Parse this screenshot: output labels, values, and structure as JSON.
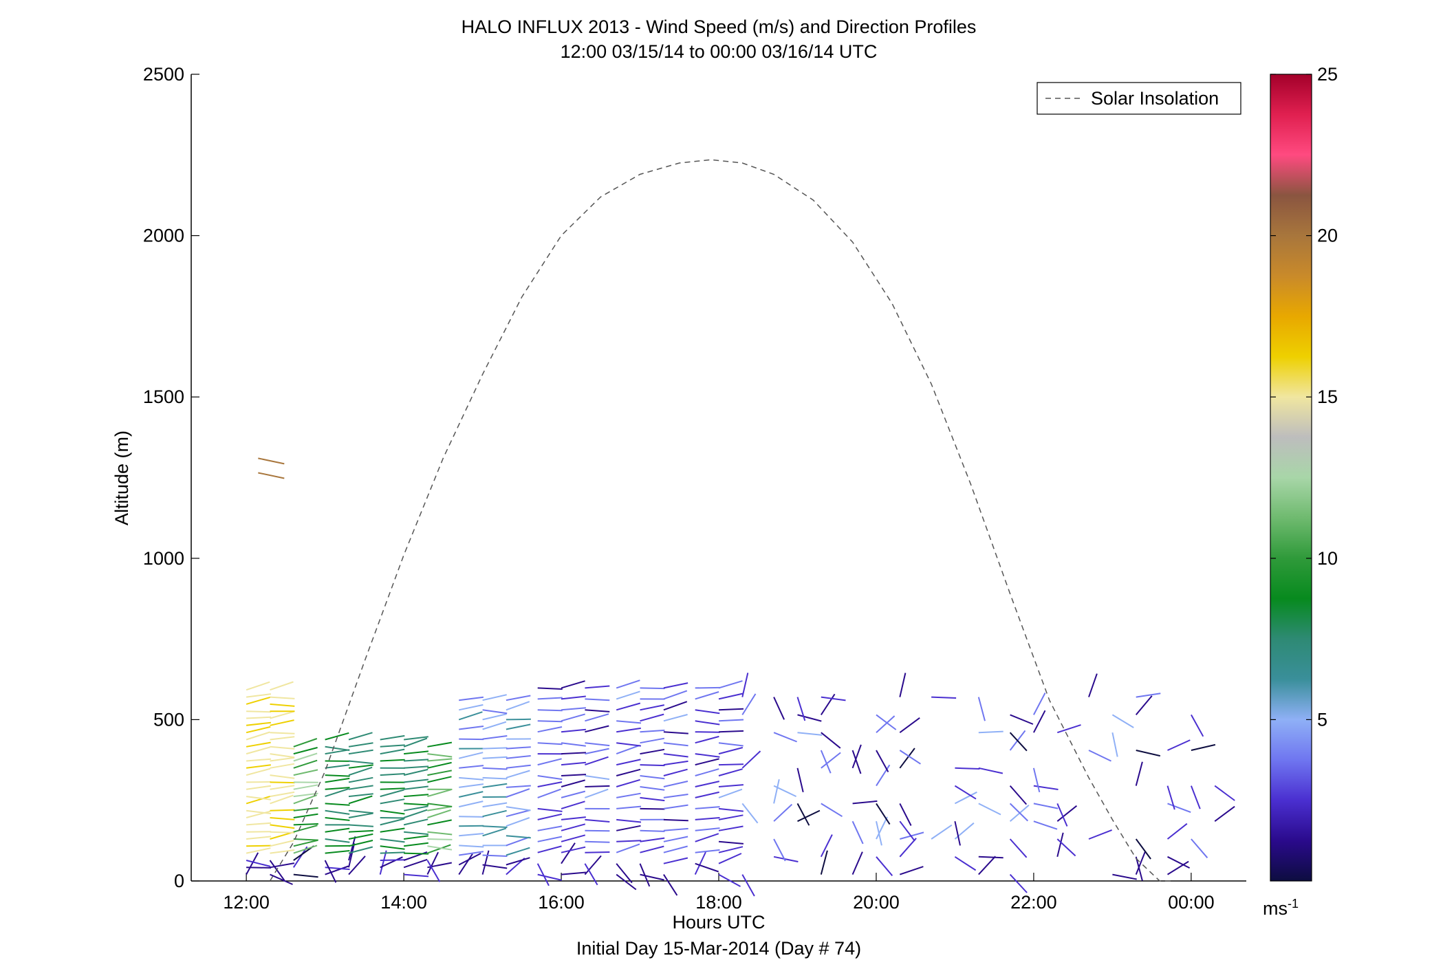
{
  "chart_data": {
    "type": "scatter",
    "title": "HALO INFLUX 2013 - Wind Speed (m/s) and Direction Profiles",
    "subtitle": "12:00 03/15/14 to 00:00 03/16/14  UTC",
    "xlabel": "Hours UTC",
    "xlabel2": "Initial Day 15-Mar-2014 (Day # 74)",
    "ylabel": "Altitude (m)",
    "xlim": [
      11.3,
      24.7
    ],
    "ylim": [
      0,
      2500
    ],
    "x_ticks": [
      12,
      14,
      16,
      18,
      20,
      22,
      24
    ],
    "x_tick_labels": [
      "12:00",
      "14:00",
      "16:00",
      "18:00",
      "20:00",
      "22:00",
      "00:00"
    ],
    "y_ticks": [
      0,
      500,
      1000,
      1500,
      2000,
      2500
    ],
    "y_tick_labels": [
      "0",
      "500",
      "1000",
      "1500",
      "2000",
      "2500"
    ],
    "legend": {
      "entry": "Solar Insolation",
      "placement": "top-right",
      "style": "dashed",
      "color": "#555555"
    },
    "solar_insolation": {
      "x": [
        12.3,
        12.6,
        13.0,
        13.5,
        14.0,
        14.5,
        15.0,
        15.5,
        16.0,
        16.5,
        17.0,
        17.5,
        17.9,
        18.3,
        18.7,
        19.2,
        19.7,
        20.2,
        20.7,
        21.2,
        21.7,
        22.2,
        22.7,
        23.0,
        23.3,
        23.6,
        23.75
      ],
      "y": [
        0,
        120,
        340,
        680,
        1010,
        1310,
        1570,
        1810,
        2000,
        2120,
        2190,
        2225,
        2235,
        2225,
        2190,
        2110,
        1980,
        1790,
        1540,
        1230,
        890,
        560,
        320,
        190,
        70,
        0,
        0
      ]
    },
    "colorbar": {
      "ticks": [
        5,
        10,
        15,
        20,
        25
      ],
      "unit_label": "ms",
      "unit_exponent": "-1",
      "range": [
        0,
        25
      ],
      "colormap": [
        "#0d0d40",
        "#2a0a8c",
        "#4a2fd0",
        "#6f76f0",
        "#8fb0f6",
        "#3a8f9a",
        "#2e8a74",
        "#078a1e",
        "#2f9a3a",
        "#6fba6f",
        "#a8d6a8",
        "#bdbdbd",
        "#f0e6a0",
        "#eed000",
        "#e8a800",
        "#c98a2a",
        "#a8763c",
        "#8a5540",
        "#ff4a80",
        "#e02050",
        "#a3002a"
      ]
    },
    "wind_profiles": [
      {
        "time": 12.0,
        "profile": "lowlevel_orange"
      },
      {
        "time": 12.3,
        "profile": "lowlevel_orange"
      },
      {
        "time": 12.6,
        "profile": "lowlevel_mixed"
      },
      {
        "time": 13.0,
        "profile": "lowlevel_green"
      },
      {
        "time": 13.3,
        "profile": "lowlevel_green"
      },
      {
        "time": 13.7,
        "profile": "lowlevel_green"
      },
      {
        "time": 14.0,
        "profile": "lowlevel_green"
      },
      {
        "time": 14.3,
        "profile": "lowlevel_mixed"
      },
      {
        "time": 14.7,
        "profile": "lowlevel_blue"
      },
      {
        "time": 15.0,
        "profile": "lowlevel_blue"
      },
      {
        "time": 15.3,
        "profile": "lowlevel_blue"
      },
      {
        "time": 15.7,
        "profile": "lowlevel_violet"
      },
      {
        "time": 16.0,
        "profile": "lowlevel_violet"
      },
      {
        "time": 16.3,
        "profile": "lowlevel_violet"
      },
      {
        "time": 16.7,
        "profile": "lowlevel_violet"
      },
      {
        "time": 17.0,
        "profile": "lowlevel_violet"
      },
      {
        "time": 17.3,
        "profile": "lowlevel_violet"
      },
      {
        "time": 17.7,
        "profile": "lowlevel_violet"
      },
      {
        "time": 18.0,
        "profile": "lowlevel_violet"
      },
      {
        "time": 18.3,
        "profile": "sparse"
      },
      {
        "time": 18.7,
        "profile": "sparse"
      },
      {
        "time": 19.0,
        "profile": "sparse"
      },
      {
        "time": 19.3,
        "profile": "sparse"
      },
      {
        "time": 19.7,
        "profile": "sparse"
      },
      {
        "time": 20.0,
        "profile": "sparse"
      },
      {
        "time": 20.3,
        "profile": "sparse"
      },
      {
        "time": 20.7,
        "profile": "sparse"
      },
      {
        "time": 21.0,
        "profile": "sparse"
      },
      {
        "time": 21.3,
        "profile": "sparse"
      },
      {
        "time": 21.7,
        "profile": "sparse"
      },
      {
        "time": 22.0,
        "profile": "sparse"
      },
      {
        "time": 22.3,
        "profile": "sparse"
      },
      {
        "time": 22.7,
        "profile": "sparse"
      },
      {
        "time": 23.0,
        "profile": "sparse"
      },
      {
        "time": 23.3,
        "profile": "sparse"
      },
      {
        "time": 23.7,
        "profile": "sparse"
      },
      {
        "time": 24.0,
        "profile": "sparse"
      },
      {
        "time": 24.3,
        "profile": "sparse"
      }
    ]
  }
}
